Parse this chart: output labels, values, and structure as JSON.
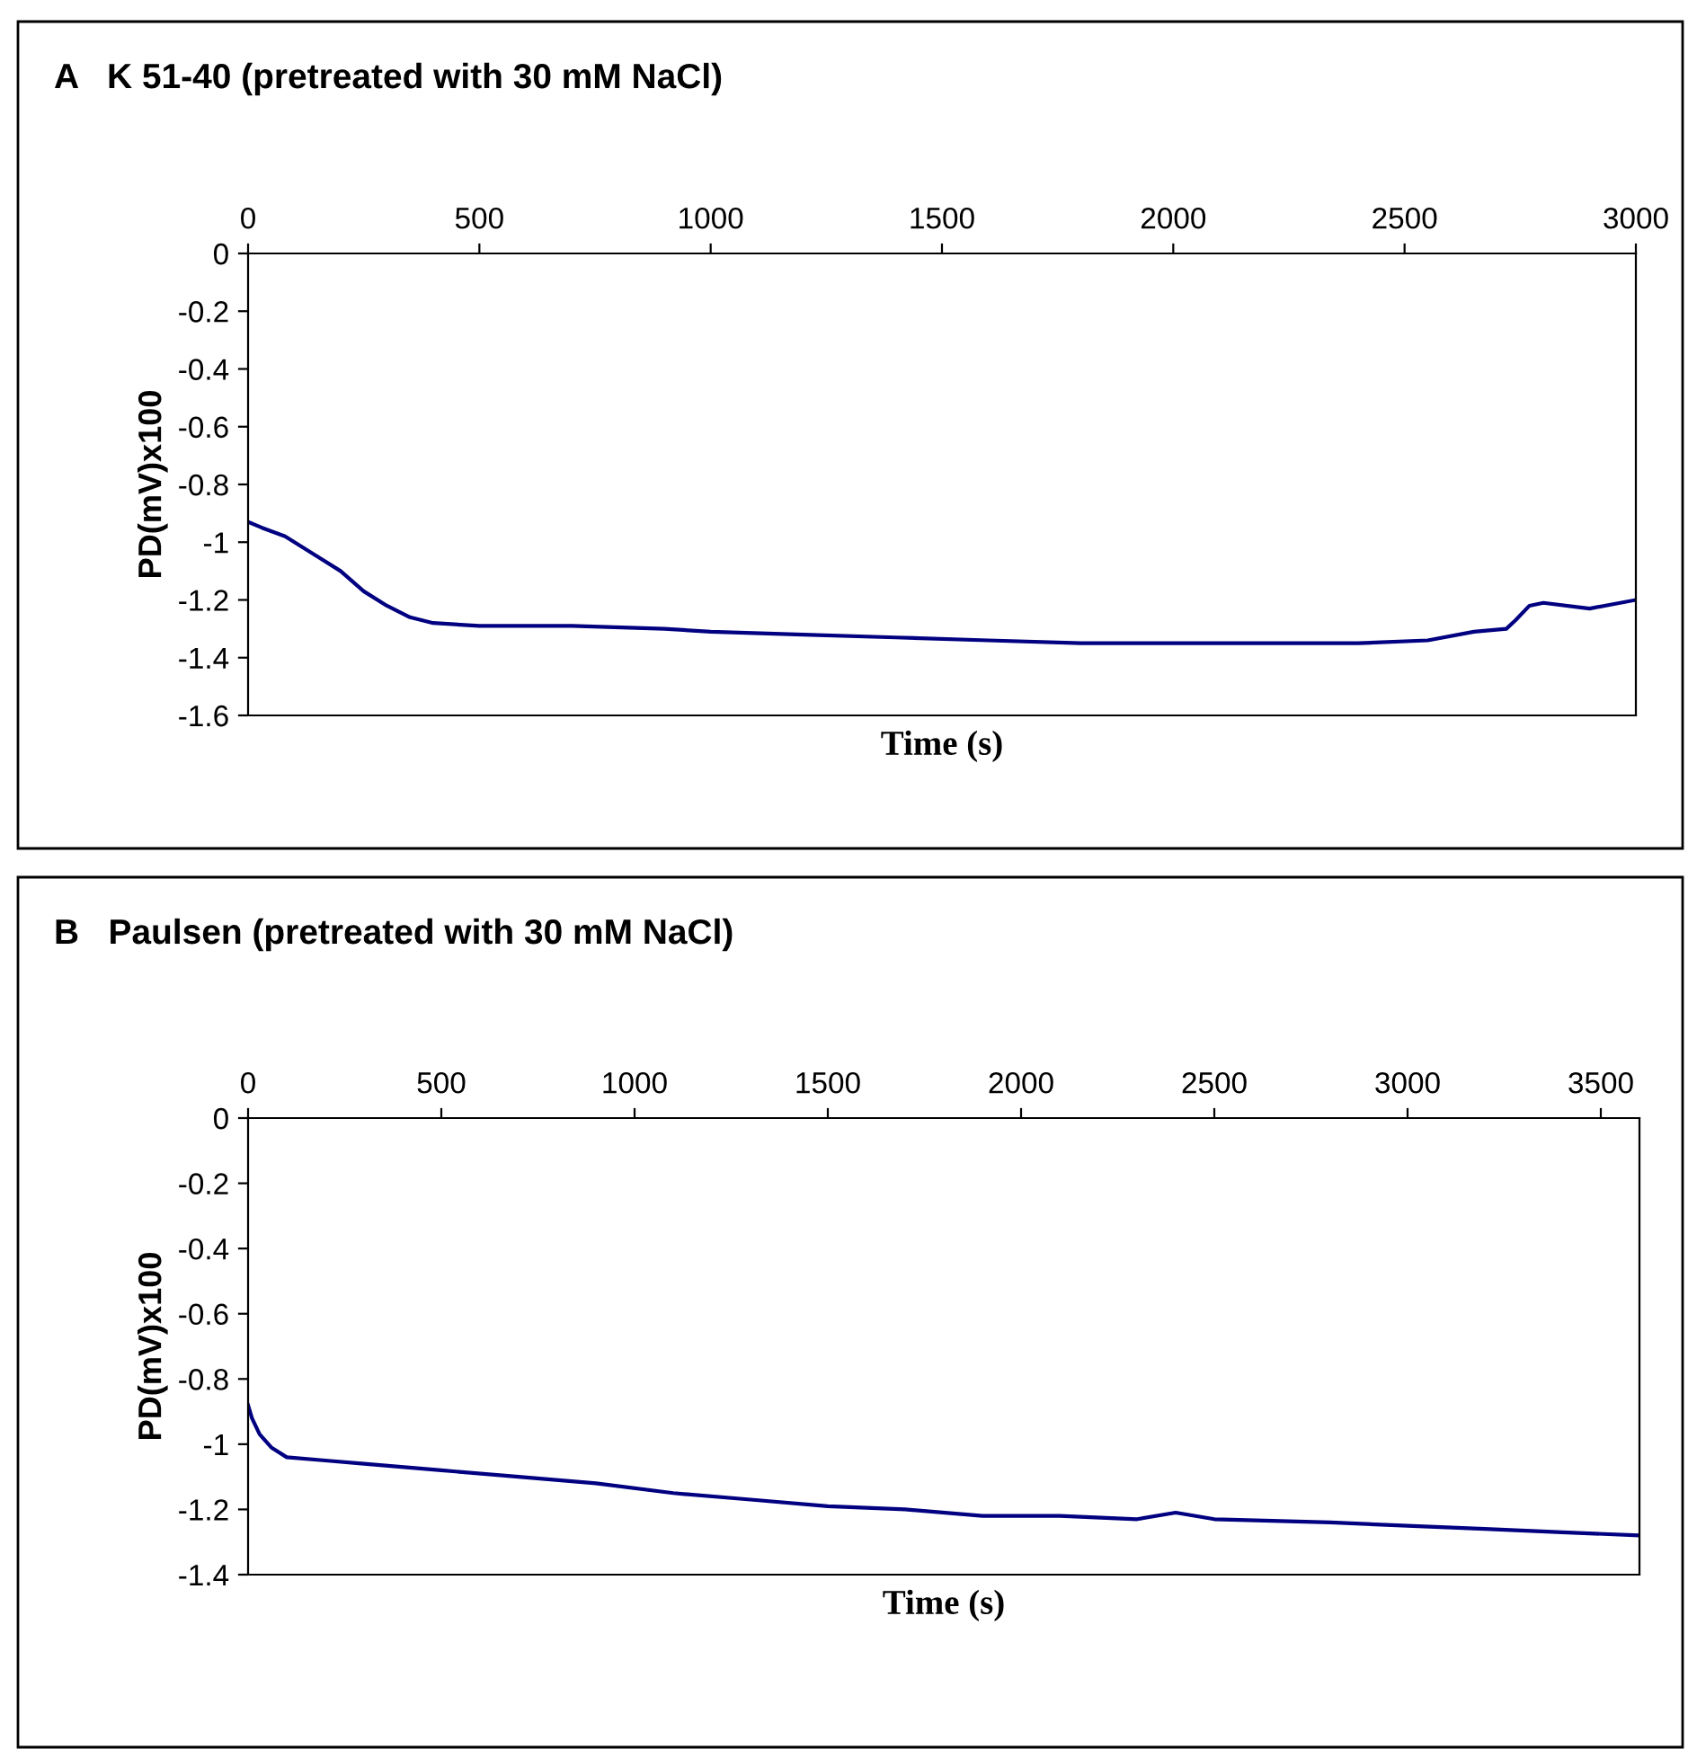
{
  "chart_data": [
    {
      "type": "line",
      "title": "A   K 51-40 (pretreated with 30 mM NaCl)",
      "xlabel": "Time (s)",
      "ylabel": "PD(mV)x100",
      "xlim": [
        0,
        3000
      ],
      "xticks": [
        0,
        500,
        1000,
        1500,
        2000,
        2500,
        3000
      ],
      "ylim": [
        -1.6,
        0
      ],
      "yticks": [
        -1.6,
        -1.4,
        -1.2,
        -1,
        -0.8,
        -0.6,
        -0.4,
        -0.2,
        0
      ],
      "grid": false,
      "legend": false,
      "series": [
        {
          "color": "#000080",
          "x": [
            0,
            30,
            80,
            150,
            200,
            250,
            300,
            350,
            400,
            500,
            700,
            900,
            1000,
            1200,
            1400,
            1600,
            1800,
            2000,
            2200,
            2400,
            2550,
            2650,
            2720,
            2740,
            2770,
            2800,
            2900,
            3000
          ],
          "values": [
            -0.93,
            -0.95,
            -0.98,
            -1.05,
            -1.1,
            -1.17,
            -1.22,
            -1.26,
            -1.28,
            -1.29,
            -1.29,
            -1.3,
            -1.31,
            -1.32,
            -1.33,
            -1.34,
            -1.35,
            -1.35,
            -1.35,
            -1.35,
            -1.34,
            -1.31,
            -1.3,
            -1.27,
            -1.22,
            -1.21,
            -1.23,
            -1.2
          ]
        }
      ]
    },
    {
      "type": "line",
      "title": "B   Paulsen (pretreated with 30 mM NaCl)",
      "xlabel": "Time (s)",
      "ylabel": "PD(mV)x100",
      "xlim": [
        0,
        3600
      ],
      "xticks": [
        0,
        500,
        1000,
        1500,
        2000,
        2500,
        3000,
        3500
      ],
      "ylim": [
        -1.4,
        0
      ],
      "yticks": [
        -1.4,
        -1.2,
        -1,
        -0.8,
        -0.6,
        -0.4,
        -0.2,
        0
      ],
      "grid": false,
      "legend": false,
      "series": [
        {
          "color": "#000080",
          "x": [
            0,
            10,
            30,
            60,
            100,
            200,
            300,
            500,
            700,
            900,
            1100,
            1300,
            1500,
            1700,
            1900,
            2100,
            2300,
            2400,
            2500,
            2800,
            3000,
            3200,
            3400,
            3600
          ],
          "values": [
            -0.88,
            -0.92,
            -0.97,
            -1.01,
            -1.04,
            -1.05,
            -1.06,
            -1.08,
            -1.1,
            -1.12,
            -1.15,
            -1.17,
            -1.19,
            -1.2,
            -1.22,
            -1.22,
            -1.23,
            -1.21,
            -1.23,
            -1.24,
            -1.25,
            -1.26,
            -1.27,
            -1.28
          ]
        }
      ]
    }
  ]
}
